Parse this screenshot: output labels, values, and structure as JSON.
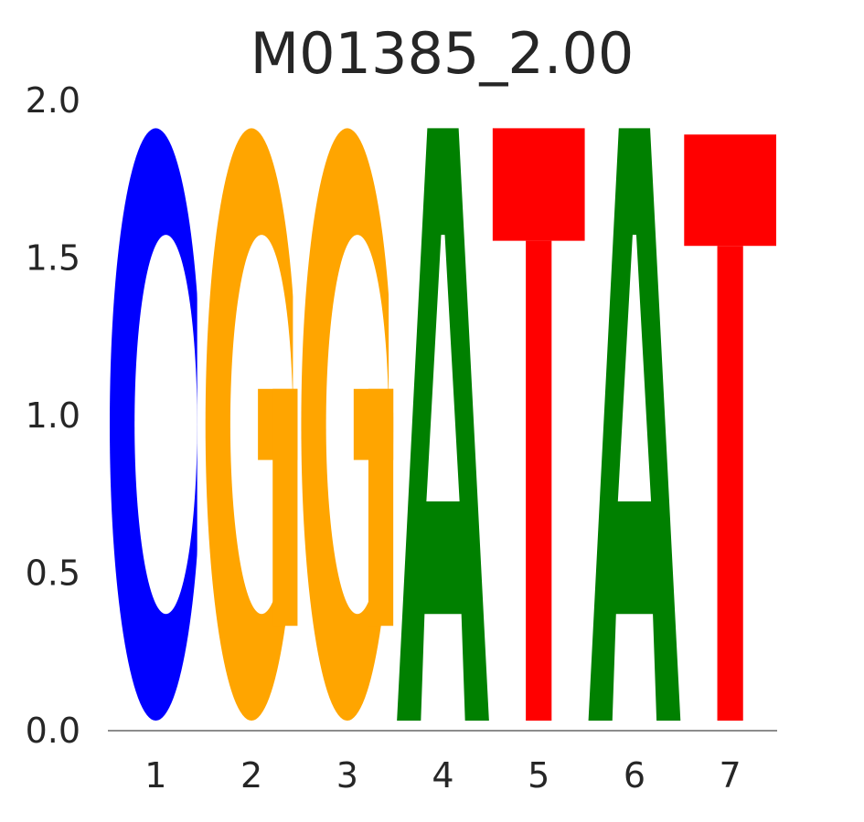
{
  "chart_data": {
    "type": "sequence-logo",
    "title": "M01385_2.00",
    "xlabel": "",
    "ylabel": "",
    "ylim": [
      0,
      2.0
    ],
    "y_ticks": [
      "0.0",
      "0.5",
      "1.0",
      "1.5",
      "2.0"
    ],
    "positions": [
      "1",
      "2",
      "3",
      "4",
      "5",
      "6",
      "7"
    ],
    "grid": false,
    "colors": {
      "A": "#008000",
      "C": "#0000ff",
      "G": "#ffa500",
      "T": "#ff0000"
    },
    "stacks": [
      {
        "position": "1",
        "letters": [
          {
            "base": "C",
            "height": 1.88
          }
        ]
      },
      {
        "position": "2",
        "letters": [
          {
            "base": "G",
            "height": 1.88
          }
        ]
      },
      {
        "position": "3",
        "letters": [
          {
            "base": "G",
            "height": 1.88
          }
        ]
      },
      {
        "position": "4",
        "letters": [
          {
            "base": "A",
            "height": 1.88
          }
        ]
      },
      {
        "position": "5",
        "letters": [
          {
            "base": "T",
            "height": 1.88
          }
        ]
      },
      {
        "position": "6",
        "letters": [
          {
            "base": "A",
            "height": 1.88
          }
        ]
      },
      {
        "position": "7",
        "letters": [
          {
            "base": "T",
            "height": 1.86
          }
        ]
      }
    ]
  }
}
